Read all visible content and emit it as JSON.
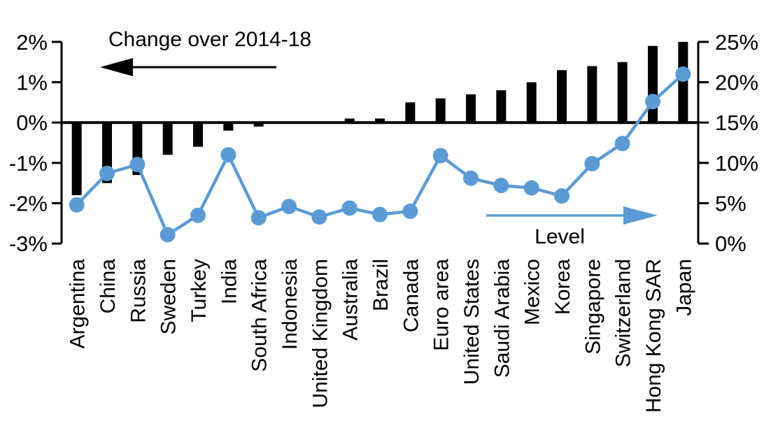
{
  "chart_data": {
    "type": "combo-bar-line",
    "categories": [
      "Argentina",
      "China",
      "Russia",
      "Sweden",
      "Turkey",
      "India",
      "South Africa",
      "Indonesia",
      "United Kingdom",
      "Australia",
      "Brazil",
      "Canada",
      "Euro area",
      "United States",
      "Saudi Arabia",
      "Mexico",
      "Korea",
      "Singapore",
      "Switzerland",
      "Hong Kong SAR",
      "Japan"
    ],
    "series": [
      {
        "name": "Change over 2014-18",
        "type": "bar",
        "axis": "left",
        "color": "#000000",
        "values": [
          -1.8,
          -1.5,
          -1.3,
          -0.8,
          -0.6,
          -0.2,
          -0.1,
          0,
          0,
          0.1,
          0.1,
          0.5,
          0.6,
          0.7,
          0.8,
          1.0,
          1.3,
          1.4,
          1.5,
          1.9,
          2.0
        ]
      },
      {
        "name": "Level",
        "type": "line",
        "axis": "right",
        "color": "#5B9BD5",
        "values": [
          4.8,
          8.7,
          9.8,
          1.1,
          3.5,
          11.0,
          3.2,
          4.6,
          3.3,
          4.4,
          3.6,
          4.0,
          10.9,
          8.1,
          7.2,
          6.9,
          5.9,
          9.9,
          12.4,
          17.6,
          21.0
        ]
      }
    ],
    "left_axis": {
      "range": [
        -3,
        2
      ],
      "tick_values": [
        2,
        1,
        0,
        -1,
        -2,
        -3
      ],
      "tick_labels": [
        "2%",
        "1%",
        "0%",
        "-1%",
        "-2%",
        "-3%"
      ]
    },
    "right_axis": {
      "range": [
        0,
        25
      ],
      "tick_values": [
        25,
        20,
        15,
        10,
        5,
        0
      ],
      "tick_labels": [
        "25%",
        "20%",
        "15%",
        "10%",
        "5%",
        "0%"
      ]
    },
    "annotations": {
      "change_label": "Change over 2014-18",
      "level_label": "Level"
    },
    "layout": {
      "grid": false,
      "legend": "none",
      "zero_line": true
    },
    "colors": {
      "bar": "#000000",
      "line": "#5B9BD5",
      "axis": "#000000"
    }
  }
}
